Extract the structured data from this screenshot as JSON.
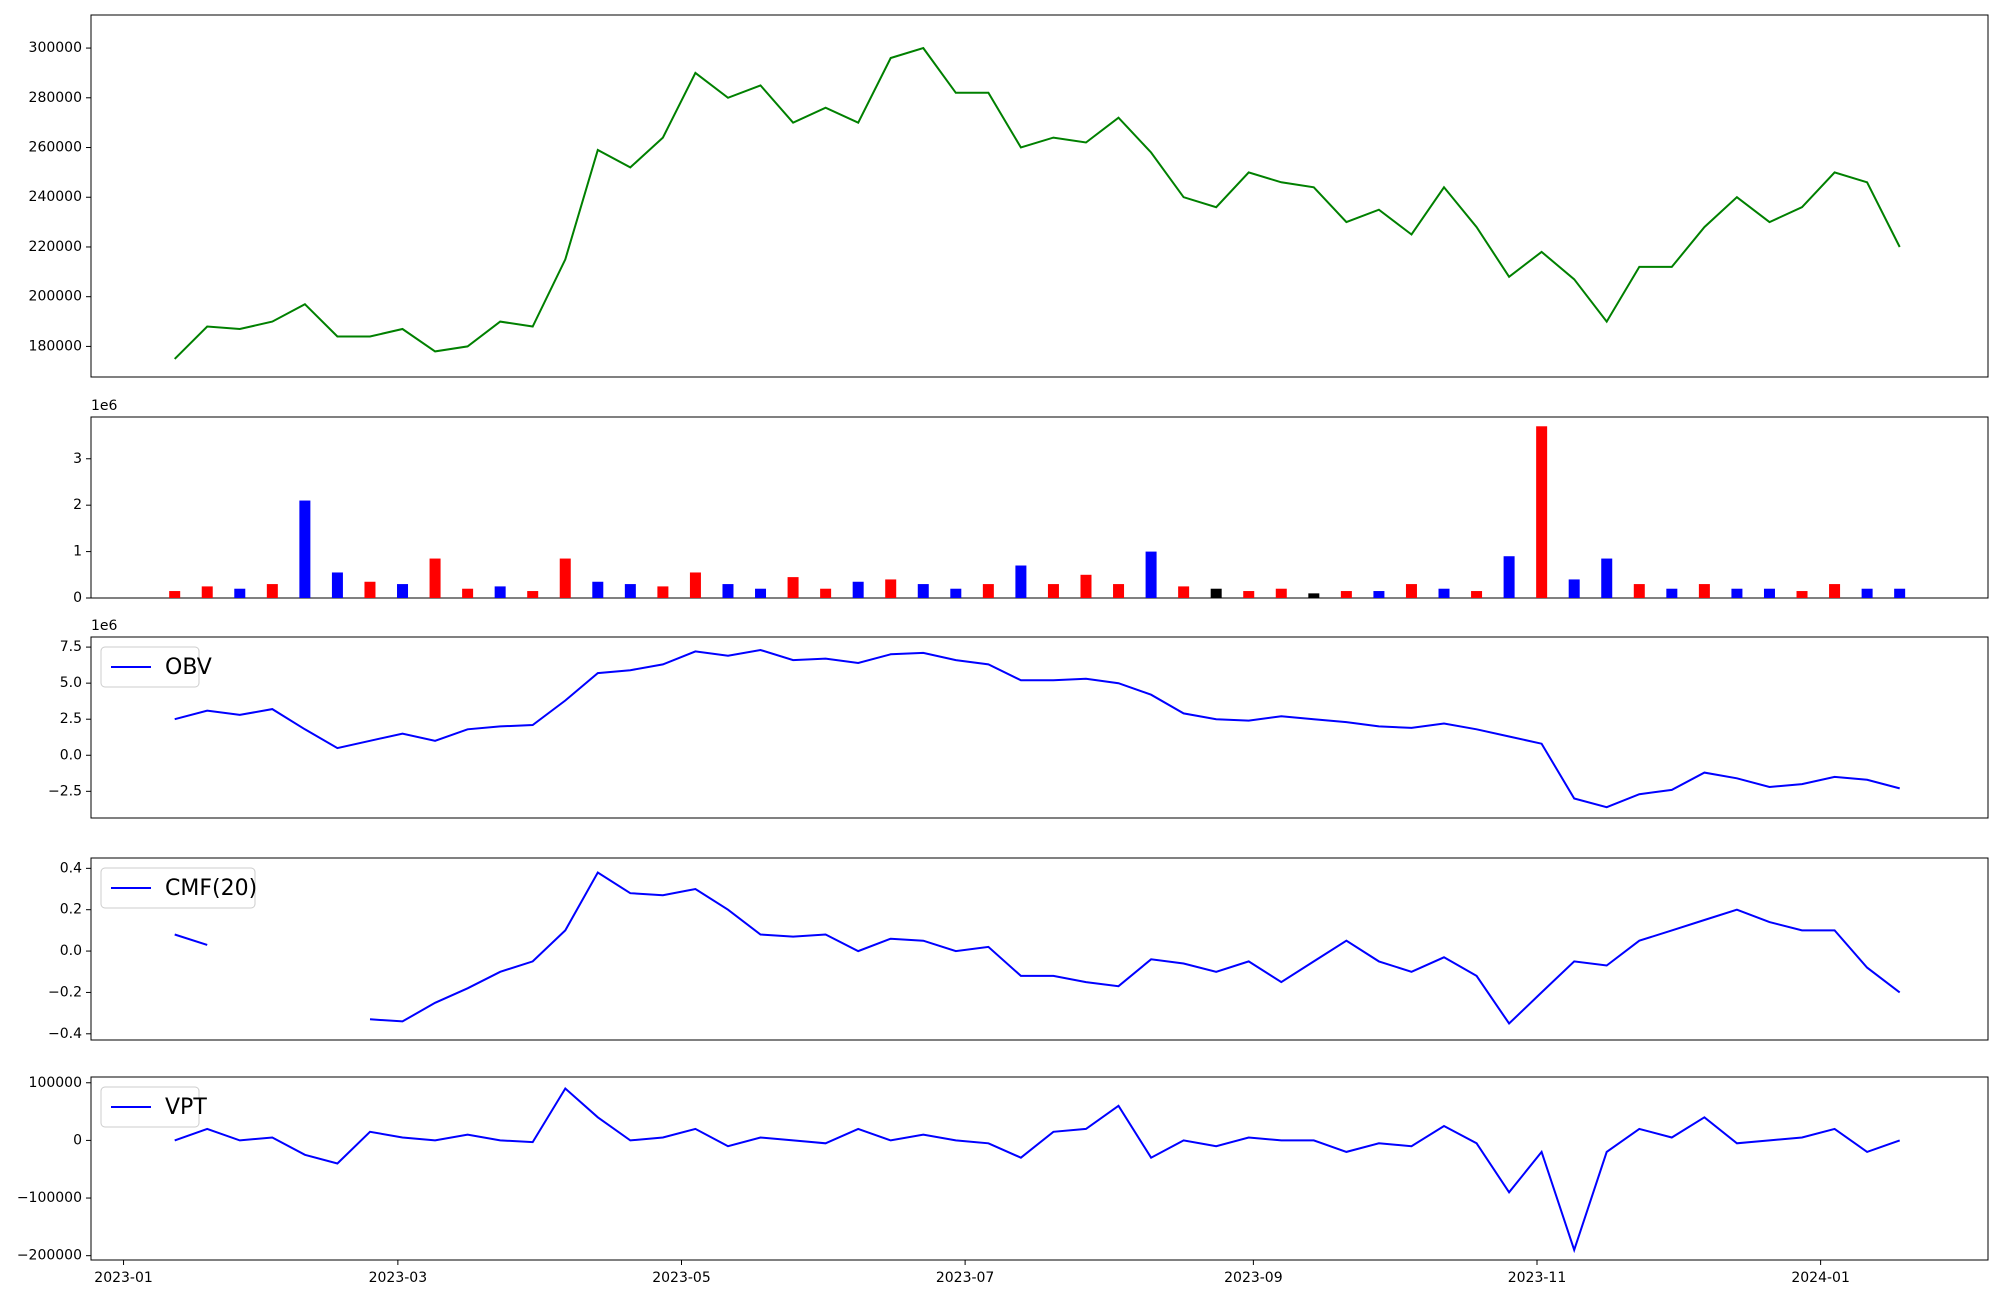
{
  "chart_data": [
    {
      "type": "line",
      "color": "#008000",
      "x": [
        11,
        18,
        25,
        32,
        39,
        46,
        53,
        60,
        67,
        74,
        81,
        88,
        95,
        102,
        109,
        116,
        123,
        130,
        137,
        144,
        151,
        158,
        165,
        172,
        179,
        186,
        193,
        200,
        207,
        214,
        221,
        228,
        235,
        242,
        249,
        256,
        263,
        270,
        277,
        284,
        291,
        298,
        305,
        312,
        319,
        326,
        333,
        340,
        347,
        354,
        361,
        368,
        375,
        382
      ],
      "values": [
        175000,
        188000,
        187000,
        190000,
        197000,
        184000,
        184000,
        187000,
        178000,
        180000,
        190000,
        188000,
        215000,
        259000,
        252000,
        264000,
        290000,
        280000,
        285000,
        270000,
        276000,
        270000,
        296000,
        300000,
        282000,
        282000,
        260000,
        264000,
        262000,
        272000,
        258000,
        240000,
        236000,
        250000,
        246000,
        244000,
        230000,
        235000,
        225000,
        244000,
        228000,
        208000,
        218000,
        207000,
        190000,
        212000,
        212000,
        228000,
        240000,
        230000,
        236000,
        250000,
        246000,
        220000
      ],
      "xlim": [
        -7,
        401
      ],
      "ylim": [
        167700,
        313300
      ],
      "yticks": [
        180000,
        200000,
        220000,
        240000,
        260000,
        280000,
        300000
      ]
    },
    {
      "type": "bar",
      "offset_label": "1e6",
      "x": [
        11,
        18,
        25,
        32,
        39,
        46,
        53,
        60,
        67,
        74,
        81,
        88,
        95,
        102,
        109,
        116,
        123,
        130,
        137,
        144,
        151,
        158,
        165,
        172,
        179,
        186,
        193,
        200,
        207,
        214,
        221,
        228,
        235,
        242,
        249,
        256,
        263,
        270,
        277,
        284,
        291,
        298,
        305,
        312,
        319,
        326,
        333,
        340,
        347,
        354,
        361,
        368,
        375,
        382
      ],
      "values": [
        0.15,
        0.25,
        0.2,
        0.3,
        2.1,
        0.55,
        0.35,
        0.3,
        0.85,
        0.2,
        0.25,
        0.15,
        0.85,
        0.35,
        0.3,
        0.25,
        0.55,
        0.3,
        0.2,
        0.45,
        0.2,
        0.35,
        0.4,
        0.3,
        0.2,
        0.3,
        0.7,
        0.3,
        0.5,
        0.3,
        1.0,
        0.25,
        0.2,
        0.15,
        0.2,
        0.1,
        0.15,
        0.15,
        0.3,
        0.2,
        0.15,
        0.9,
        3.7,
        0.4,
        0.85,
        0.3,
        0.2,
        0.3,
        0.2,
        0.2,
        0.15,
        0.3,
        0.2,
        0.2
      ],
      "colors": [
        "#ff0000",
        "#ff0000",
        "#0000ff",
        "#ff0000",
        "#0000ff",
        "#0000ff",
        "#ff0000",
        "#0000ff",
        "#ff0000",
        "#ff0000",
        "#0000ff",
        "#ff0000",
        "#ff0000",
        "#0000ff",
        "#0000ff",
        "#ff0000",
        "#ff0000",
        "#0000ff",
        "#0000ff",
        "#ff0000",
        "#ff0000",
        "#0000ff",
        "#ff0000",
        "#0000ff",
        "#0000ff",
        "#ff0000",
        "#0000ff",
        "#ff0000",
        "#ff0000",
        "#ff0000",
        "#0000ff",
        "#ff0000",
        "#000000",
        "#ff0000",
        "#ff0000",
        "#000000",
        "#ff0000",
        "#0000ff",
        "#ff0000",
        "#0000ff",
        "#ff0000",
        "#0000ff",
        "#ff0000",
        "#0000ff",
        "#0000ff",
        "#ff0000",
        "#0000ff",
        "#ff0000",
        "#0000ff",
        "#0000ff",
        "#ff0000",
        "#ff0000",
        "#0000ff",
        "#0000ff"
      ],
      "xlim": [
        -7,
        401
      ],
      "ylim": [
        0,
        3.9
      ],
      "yticks": [
        0,
        1,
        2,
        3
      ]
    },
    {
      "type": "line",
      "offset_label": "1e6",
      "legend": "upper left",
      "x": [
        11,
        18,
        25,
        32,
        39,
        46,
        53,
        60,
        67,
        74,
        81,
        88,
        95,
        102,
        109,
        116,
        123,
        130,
        137,
        144,
        151,
        158,
        165,
        172,
        179,
        186,
        193,
        200,
        207,
        214,
        221,
        228,
        235,
        242,
        249,
        256,
        263,
        270,
        277,
        284,
        291,
        298,
        305,
        312,
        319,
        326,
        333,
        340,
        347,
        354,
        361,
        368,
        375,
        382
      ],
      "series": [
        {
          "name": "OBV",
          "color": "#0000ff",
          "values": [
            2.5,
            3.1,
            2.8,
            3.2,
            1.8,
            0.5,
            1.0,
            1.5,
            1.0,
            1.8,
            2.0,
            2.1,
            3.8,
            5.7,
            5.9,
            6.3,
            7.2,
            6.9,
            7.3,
            6.6,
            6.7,
            6.4,
            7.0,
            7.1,
            6.6,
            6.3,
            5.2,
            5.2,
            5.3,
            5.0,
            4.2,
            2.9,
            2.5,
            2.4,
            2.7,
            2.5,
            2.3,
            2.0,
            1.9,
            2.2,
            1.8,
            1.3,
            0.8,
            -3.0,
            -3.6,
            -2.7,
            -2.4,
            -1.2,
            -1.6,
            -2.2,
            -2.0,
            -1.5,
            -1.7,
            -2.3
          ]
        }
      ],
      "xlim": [
        -7,
        401
      ],
      "ylim": [
        -4.35,
        8.2
      ],
      "yticks": [
        {
          "value": -2.5,
          "label": "−2.5"
        },
        {
          "value": 0,
          "label": "0.0"
        },
        2.5,
        {
          "value": 5,
          "label": "5.0"
        },
        7.5
      ]
    },
    {
      "type": "line",
      "legend": "upper left",
      "x": [
        11,
        18,
        25,
        32,
        39,
        46,
        53,
        60,
        67,
        74,
        81,
        88,
        95,
        102,
        109,
        116,
        123,
        130,
        137,
        144,
        151,
        158,
        165,
        172,
        179,
        186,
        193,
        200,
        207,
        214,
        221,
        228,
        235,
        242,
        249,
        256,
        263,
        270,
        277,
        284,
        291,
        298,
        305,
        312,
        319,
        326,
        333,
        340,
        347,
        354,
        361,
        368,
        375,
        382
      ],
      "series": [
        {
          "name": "CMF(20)",
          "color": "#0000ff",
          "values": [
            0.08,
            0.03,
            null,
            null,
            null,
            null,
            -0.33,
            -0.34,
            -0.25,
            -0.18,
            -0.1,
            -0.05,
            0.1,
            0.38,
            0.28,
            0.27,
            0.3,
            0.2,
            0.08,
            0.07,
            0.08,
            0.0,
            0.06,
            0.05,
            0.0,
            0.02,
            -0.12,
            -0.12,
            -0.15,
            -0.17,
            -0.04,
            -0.06,
            -0.1,
            -0.05,
            -0.15,
            -0.05,
            0.05,
            -0.05,
            -0.1,
            -0.03,
            -0.12,
            -0.35,
            -0.2,
            -0.05,
            -0.07,
            0.05,
            0.1,
            0.15,
            0.2,
            0.14,
            0.1,
            0.1,
            -0.08,
            -0.2
          ]
        }
      ],
      "xlim": [
        -7,
        401
      ],
      "ylim": [
        -0.43,
        0.45
      ],
      "yticks": [
        {
          "value": -0.4,
          "label": "−0.4"
        },
        {
          "value": -0.2,
          "label": "−0.2"
        },
        {
          "value": 0,
          "label": "0.0"
        },
        0.2,
        0.4
      ]
    },
    {
      "type": "line",
      "legend": "upper left",
      "x": [
        11,
        18,
        25,
        32,
        39,
        46,
        53,
        60,
        67,
        74,
        81,
        88,
        95,
        102,
        109,
        116,
        123,
        130,
        137,
        144,
        151,
        158,
        165,
        172,
        179,
        186,
        193,
        200,
        207,
        214,
        221,
        228,
        235,
        242,
        249,
        256,
        263,
        270,
        277,
        284,
        291,
        298,
        305,
        312,
        319,
        326,
        333,
        340,
        347,
        354,
        361,
        368,
        375,
        382
      ],
      "series": [
        {
          "name": "VPT",
          "color": "#0000ff",
          "values": [
            0,
            20000,
            0,
            5000,
            -25000,
            -40000,
            15000,
            5000,
            0,
            10000,
            0,
            -3000,
            90000,
            40000,
            0,
            5000,
            20000,
            -10000,
            5000,
            0,
            -5000,
            20000,
            0,
            10000,
            0,
            -5000,
            -30000,
            15000,
            20000,
            60000,
            -30000,
            0,
            -10000,
            5000,
            0,
            0,
            -20000,
            -5000,
            -10000,
            25000,
            -5000,
            -90000,
            -20000,
            -190000,
            -20000,
            20000,
            5000,
            40000,
            -5000,
            0,
            5000,
            20000,
            -20000,
            0
          ]
        }
      ],
      "xlim": [
        -7,
        401
      ],
      "ylim": [
        -207500,
        110000
      ],
      "yticks": [
        {
          "value": -200000,
          "label": "−200000"
        },
        {
          "value": -100000,
          "label": "−100000"
        },
        0,
        100000
      ],
      "xticks": [
        {
          "value": 0,
          "label": "2023-01"
        },
        {
          "value": 59,
          "label": "2023-03"
        },
        {
          "value": 120,
          "label": "2023-05"
        },
        {
          "value": 181,
          "label": "2023-07"
        },
        {
          "value": 243,
          "label": "2023-09"
        },
        {
          "value": 304,
          "label": "2023-11"
        },
        {
          "value": 365,
          "label": "2024-01"
        }
      ]
    }
  ]
}
